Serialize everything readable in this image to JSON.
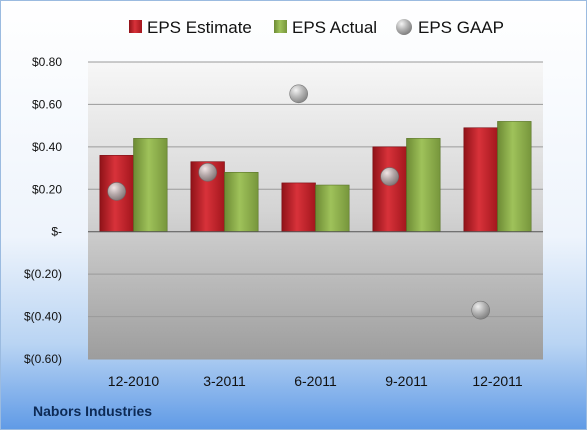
{
  "chart_data": {
    "type": "bar",
    "company": "Nabors Industries",
    "categories": [
      "12-2010",
      "3-2011",
      "6-2011",
      "9-2011",
      "12-2011"
    ],
    "series": [
      {
        "name": "EPS Estimate",
        "kind": "bar",
        "color": "#c0202a",
        "values": [
          0.36,
          0.33,
          0.23,
          0.4,
          0.49
        ]
      },
      {
        "name": "EPS Actual",
        "kind": "bar",
        "color": "#8db04a",
        "values": [
          0.44,
          0.28,
          0.22,
          0.44,
          0.52
        ]
      },
      {
        "name": "EPS GAAP",
        "kind": "scatter",
        "color": "#a8a8a8",
        "values": [
          0.19,
          0.28,
          0.65,
          0.26,
          -0.37
        ]
      }
    ],
    "ylim": [
      -0.6,
      0.8
    ],
    "yticks": [
      {
        "value": 0.8,
        "label": "$0.80"
      },
      {
        "value": 0.6,
        "label": "$0.60"
      },
      {
        "value": 0.4,
        "label": "$0.40"
      },
      {
        "value": 0.2,
        "label": "$0.20"
      },
      {
        "value": 0.0,
        "label": "$-"
      },
      {
        "value": -0.2,
        "label": "$(0.20)"
      },
      {
        "value": -0.4,
        "label": "$(0.40)"
      },
      {
        "value": -0.6,
        "label": "$(0.60)"
      }
    ],
    "grid": true,
    "legend_position": "top"
  }
}
